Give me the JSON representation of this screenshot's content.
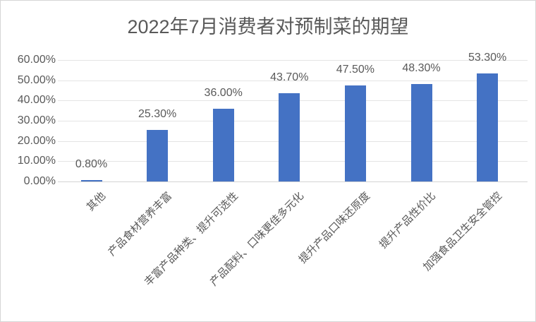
{
  "chart_data": {
    "type": "bar",
    "title": "2022年7月消费者对预制菜的期望",
    "categories": [
      "其他",
      "产品食材营养丰富",
      "丰富产品种类、提升可选性",
      "产品配料、口味更佳多元化",
      "提升产品口味还原度",
      "提升产品性价比",
      "加强食品卫生安全管控"
    ],
    "values": [
      0.8,
      25.3,
      36.0,
      43.7,
      47.5,
      48.3,
      53.3
    ],
    "data_labels": [
      "0.80%",
      "25.30%",
      "36.00%",
      "43.70%",
      "47.50%",
      "48.30%",
      "53.30%"
    ],
    "y_ticks": [
      "60.00%",
      "50.00%",
      "40.00%",
      "30.00%",
      "20.00%",
      "10.00%",
      "0.00%"
    ],
    "ylim": [
      0,
      60
    ],
    "xlabel": "",
    "ylabel": "",
    "grid": true,
    "legend": false,
    "colors": {
      "bar": "#4472c4",
      "text": "#595959",
      "gridline": "#e4e4e4",
      "axis_line": "#d3d3d3",
      "background": "#ffffff",
      "border": "#d6d6d6"
    }
  }
}
